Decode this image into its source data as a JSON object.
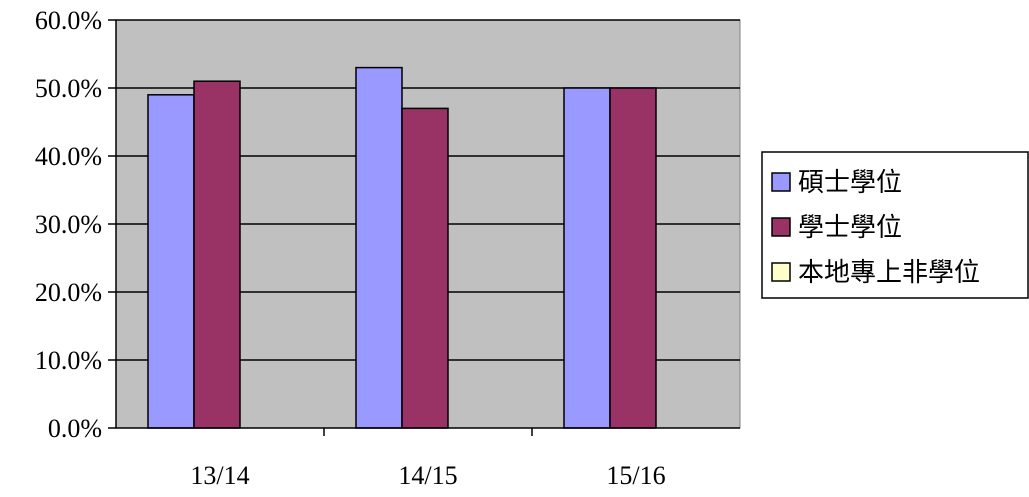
{
  "chart_data": {
    "type": "bar",
    "categories": [
      "13/14",
      "14/15",
      "15/16"
    ],
    "series": [
      {
        "name": "碩士學位",
        "color": "#9999ff",
        "values": [
          49.0,
          53.0,
          50.0
        ]
      },
      {
        "name": "學士學位",
        "color": "#993366",
        "values": [
          51.0,
          47.0,
          50.0
        ]
      },
      {
        "name": "本地專上非學位",
        "color": "#ffffcc",
        "values": [
          0.0,
          0.0,
          0.0
        ]
      }
    ],
    "yticks": [
      "0.0%",
      "10.0%",
      "20.0%",
      "30.0%",
      "40.0%",
      "50.0%",
      "60.0%"
    ],
    "ylim": [
      0,
      60
    ],
    "y_unit": "%",
    "grid": true,
    "plot_background": "#c0c0c0",
    "legend_position": "right"
  }
}
